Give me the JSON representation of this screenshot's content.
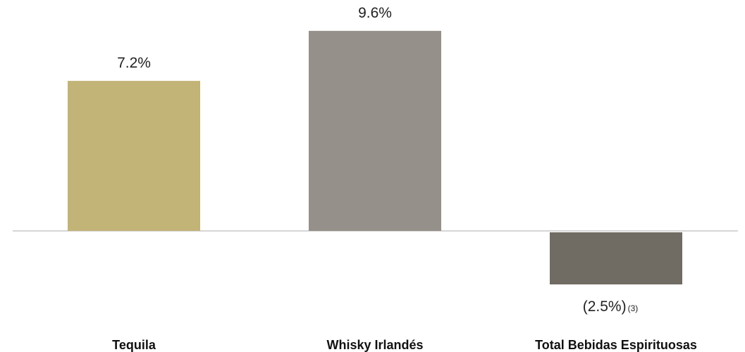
{
  "chart_data": {
    "type": "bar",
    "categories": [
      "Tequila",
      "Whisky Irlandés",
      "Total Bebidas Espirituosas"
    ],
    "values": [
      7.2,
      9.6,
      -2.5
    ],
    "value_labels": [
      "7.2%",
      "9.6%",
      "(2.5%)"
    ],
    "footnotes": [
      "",
      "",
      "(3)"
    ],
    "colors": [
      "#c2b377",
      "#959089",
      "#706b63"
    ],
    "baseline_color": "#c9c9c9",
    "ylim": [
      -3.5,
      10.5
    ],
    "grid": false,
    "legend": "none",
    "title": "",
    "xlabel": "",
    "ylabel": ""
  }
}
